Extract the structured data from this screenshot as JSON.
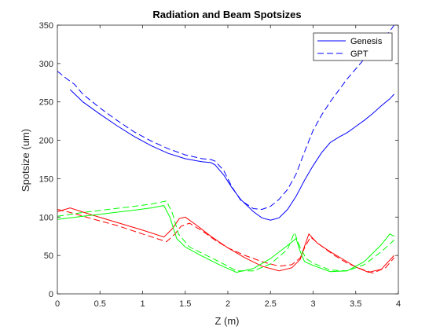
{
  "chart_data": {
    "type": "line",
    "title": "Radiation and Beam Spotsizes",
    "xlabel": "Z (m)",
    "ylabel": "Spotsize (um)",
    "xlim": [
      0,
      4
    ],
    "ylim": [
      0,
      350
    ],
    "xticks": [
      "0",
      "0.5",
      "1",
      "1.5",
      "2",
      "2.5",
      "3",
      "3.5",
      "4"
    ],
    "yticks": [
      "0",
      "50",
      "100",
      "150",
      "200",
      "250",
      "300",
      "350"
    ],
    "legend_position": "top-right",
    "legend": [
      {
        "name": "Genesis",
        "style": "solid",
        "color": "#0000ff"
      },
      {
        "name": "GPT",
        "style": "dashed",
        "color": "#0000ff"
      }
    ],
    "series": [
      {
        "color": "#0000ff",
        "style": "solid",
        "x": [
          0.15,
          0.3,
          0.5,
          0.7,
          0.9,
          1.1,
          1.3,
          1.5,
          1.7,
          1.8,
          1.85,
          1.95,
          2.05,
          2.15,
          2.3,
          2.4,
          2.5,
          2.6,
          2.7,
          2.8,
          2.9,
          3.0,
          3.1,
          3.2,
          3.3,
          3.4,
          3.5,
          3.6,
          3.7,
          3.8,
          3.9,
          3.95
        ],
        "y": [
          266,
          250,
          234,
          219,
          205,
          193,
          183,
          176,
          172,
          171,
          168,
          155,
          138,
          123,
          107,
          99,
          96,
          99,
          110,
          127,
          148,
          167,
          184,
          197,
          204,
          210,
          218,
          226,
          235,
          245,
          254,
          260
        ]
      },
      {
        "color": "#0000ff",
        "style": "dashed",
        "x": [
          0,
          0.1,
          0.2,
          0.3,
          0.5,
          0.7,
          0.9,
          1.1,
          1.3,
          1.5,
          1.7,
          1.8,
          1.85,
          1.95,
          2.05,
          2.15,
          2.3,
          2.4,
          2.5,
          2.6,
          2.7,
          2.8,
          2.9,
          3.0,
          3.1,
          3.2,
          3.3,
          3.4,
          3.5,
          3.6,
          3.7,
          3.8,
          3.9,
          3.95
        ],
        "y": [
          290,
          281,
          273,
          260,
          242,
          226,
          211,
          199,
          189,
          181,
          176,
          175,
          173,
          161,
          139,
          122,
          111,
          110,
          114,
          123,
          136,
          156,
          185,
          213,
          233,
          250,
          265,
          280,
          293,
          306,
          318,
          330,
          342,
          350
        ]
      },
      {
        "color": "#ff0000",
        "style": "solid",
        "x": [
          0,
          0.15,
          0.4,
          0.7,
          1.0,
          1.25,
          1.35,
          1.43,
          1.5,
          1.65,
          1.8,
          2.0,
          2.2,
          2.4,
          2.6,
          2.75,
          2.85,
          2.9,
          2.95,
          3.05,
          3.2,
          3.35,
          3.5,
          3.65,
          3.8,
          3.95
        ],
        "y": [
          107,
          112,
          103,
          93,
          83,
          74,
          85,
          98,
          100,
          88,
          75,
          60,
          47,
          36,
          30,
          34,
          45,
          62,
          78,
          66,
          55,
          45,
          35,
          28,
          32,
          50
        ]
      },
      {
        "color": "#ff0000",
        "style": "dashed",
        "x": [
          0,
          0.15,
          0.4,
          0.7,
          1.0,
          1.28,
          1.38,
          1.45,
          1.55,
          1.7,
          1.85,
          2.0,
          2.2,
          2.4,
          2.6,
          2.75,
          2.85,
          2.9,
          2.97,
          3.1,
          3.25,
          3.4,
          3.55,
          3.7,
          3.85,
          3.95
        ],
        "y": [
          110,
          106,
          98,
          89,
          78,
          68,
          78,
          88,
          92,
          82,
          70,
          60,
          50,
          42,
          36,
          38,
          47,
          60,
          74,
          62,
          50,
          40,
          33,
          27,
          34,
          47
        ]
      },
      {
        "color": "#00ff00",
        "style": "solid",
        "x": [
          0,
          0.3,
          0.6,
          0.9,
          1.1,
          1.25,
          1.32,
          1.4,
          1.5,
          1.7,
          1.9,
          2.1,
          2.3,
          2.5,
          2.7,
          2.8,
          2.85,
          2.9,
          3.0,
          3.2,
          3.4,
          3.6,
          3.8,
          3.9,
          3.95
        ],
        "y": [
          97,
          101,
          105,
          109,
          112,
          115,
          100,
          72,
          61,
          49,
          38,
          28,
          33,
          46,
          63,
          72,
          55,
          42,
          37,
          29,
          30,
          42,
          64,
          78,
          75
        ]
      },
      {
        "color": "#00ff00",
        "style": "dashed",
        "x": [
          0,
          0.3,
          0.6,
          0.9,
          1.1,
          1.28,
          1.35,
          1.42,
          1.55,
          1.75,
          1.95,
          2.1,
          2.3,
          2.5,
          2.7,
          2.78,
          2.85,
          2.92,
          3.0,
          3.2,
          3.4,
          3.6,
          3.8,
          3.95
        ],
        "y": [
          101,
          106,
          110,
          114,
          117,
          121,
          105,
          78,
          61,
          50,
          39,
          30,
          30,
          39,
          58,
          80,
          60,
          46,
          40,
          31,
          30,
          38,
          55,
          70
        ]
      }
    ]
  }
}
